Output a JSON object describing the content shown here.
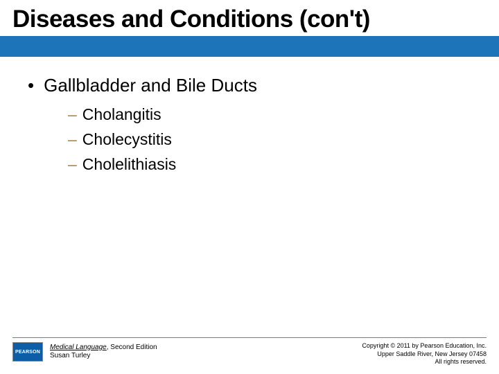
{
  "colors": {
    "blue_bar": "#1e74b8",
    "sub_dash": "#b08030"
  },
  "title": "Diseases and Conditions (con't)",
  "main_bullet": "Gallbladder and Bile Ducts",
  "sub_items": {
    "0": "Cholangitis",
    "1": "Cholecystitis",
    "2": "Cholelithiasis"
  },
  "footer": {
    "logo_text": "PEARSON",
    "book_title": "Medical Language",
    "book_edition": ", Second Edition",
    "author": "Susan Turley",
    "copyright_line1": "Copyright © 2011 by Pearson Education, Inc.",
    "copyright_line2": "Upper Saddle River, New Jersey 07458",
    "copyright_line3": "All rights reserved."
  }
}
